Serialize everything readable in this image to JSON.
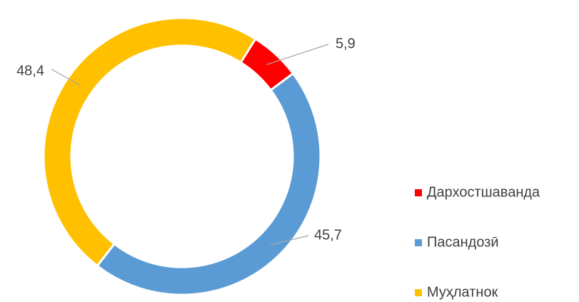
{
  "chart_data": {
    "type": "donut",
    "categories": [
      "Дархостшаванда",
      "Пасандозӣ",
      "Муҳлатнок"
    ],
    "values": [
      5.9,
      45.7,
      48.4
    ],
    "value_labels": [
      "5,9",
      "45,7",
      "48,4"
    ],
    "colors": [
      "#ff0000",
      "#5b9bd5",
      "#ffc000"
    ],
    "legend": "right"
  }
}
